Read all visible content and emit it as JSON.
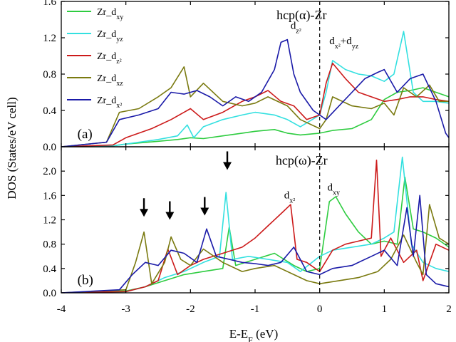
{
  "chart_data": {
    "type": "line",
    "xlabel": "E-E",
    "xlabel_sub": "F",
    "xlabel_unit": " (eV)",
    "ylabel": "DOS (States/eV cell)",
    "xlim": [
      -4,
      2
    ],
    "x_ticks": [
      "-4",
      "-3",
      "-2",
      "-1",
      "0",
      "1",
      "2"
    ],
    "fermi_level": 0,
    "series_meta": [
      {
        "key": "dxy",
        "base": "Zr_d",
        "sub": "xy",
        "color": "#2ecc40"
      },
      {
        "key": "dyz",
        "base": "Zr_d",
        "sub": "yz",
        "color": "#33e0e0"
      },
      {
        "key": "dz2",
        "base": "Zr_d",
        "sub": "z²",
        "color": "#cc1a1a"
      },
      {
        "key": "dxz",
        "base": "Zr_d",
        "sub": "xz",
        "color": "#7a7a10"
      },
      {
        "key": "dx2",
        "base": "Zr_d",
        "sub": "x²",
        "color": "#1a1aa8"
      }
    ],
    "panels": [
      {
        "id": "a",
        "label": "(a)",
        "title": "hcp(α)-Zr",
        "ylim": [
          0,
          1.6
        ],
        "y_ticks": [
          "0.0",
          "0.4",
          "0.8",
          "1.2",
          "1.6"
        ],
        "annotations": [
          {
            "base": "d",
            "sub": "z²",
            "x": -0.45,
            "y": 1.3
          },
          {
            "base": "d",
            "sub": "x²",
            "rest": "+d",
            "sub2": "yz",
            "x": 0.15,
            "y": 1.13
          }
        ],
        "arrows": [],
        "series": [
          {
            "key": "dxy",
            "x": [
              -4,
              -3.2,
              -3,
              -2.5,
              -2.2,
              -2.0,
              -1.8,
              -1.5,
              -1.2,
              -1.0,
              -0.7,
              -0.5,
              -0.3,
              0,
              0.2,
              0.5,
              0.8,
              1.0,
              1.2,
              1.4,
              1.6,
              1.8,
              2.0
            ],
            "y": [
              0,
              0.01,
              0.03,
              0.06,
              0.08,
              0.1,
              0.09,
              0.12,
              0.15,
              0.17,
              0.19,
              0.15,
              0.13,
              0.15,
              0.18,
              0.2,
              0.3,
              0.52,
              0.6,
              0.62,
              0.65,
              0.6,
              0.55
            ]
          },
          {
            "key": "dyz",
            "x": [
              -4,
              -3.2,
              -3,
              -2.5,
              -2.2,
              -2.05,
              -1.95,
              -1.8,
              -1.5,
              -1.2,
              -1.0,
              -0.7,
              -0.5,
              -0.3,
              0,
              0.1,
              0.2,
              0.4,
              0.6,
              0.8,
              1.0,
              1.15,
              1.3,
              1.45,
              1.6,
              1.8,
              2.0
            ],
            "y": [
              0,
              0.01,
              0.03,
              0.08,
              0.12,
              0.24,
              0.1,
              0.22,
              0.3,
              0.35,
              0.38,
              0.35,
              0.3,
              0.22,
              0.35,
              0.6,
              0.95,
              0.85,
              0.8,
              0.78,
              0.72,
              0.8,
              1.27,
              0.6,
              0.5,
              0.5,
              0.48
            ]
          },
          {
            "key": "dz2",
            "x": [
              -4,
              -3.2,
              -3.0,
              -2.6,
              -2.3,
              -2.0,
              -1.8,
              -1.5,
              -1.2,
              -1.0,
              -0.8,
              -0.6,
              -0.4,
              -0.2,
              0,
              0.1,
              0.2,
              0.4,
              0.6,
              0.8,
              1.0,
              1.2,
              1.4,
              1.6,
              1.8,
              2.0
            ],
            "y": [
              0,
              0.02,
              0.1,
              0.2,
              0.3,
              0.42,
              0.3,
              0.38,
              0.5,
              0.55,
              0.62,
              0.5,
              0.45,
              0.3,
              0.35,
              0.7,
              0.92,
              0.75,
              0.6,
              0.55,
              0.5,
              0.52,
              0.55,
              0.55,
              0.52,
              0.5
            ]
          },
          {
            "key": "dxz",
            "x": [
              -4,
              -3.3,
              -3.1,
              -2.8,
              -2.5,
              -2.3,
              -2.1,
              -2.0,
              -1.8,
              -1.5,
              -1.2,
              -1.0,
              -0.8,
              -0.5,
              -0.3,
              0,
              0.1,
              0.2,
              0.5,
              0.8,
              1.0,
              1.15,
              1.3,
              1.5,
              1.7,
              1.85,
              2.0
            ],
            "y": [
              0,
              0.05,
              0.38,
              0.42,
              0.55,
              0.65,
              0.88,
              0.55,
              0.7,
              0.5,
              0.45,
              0.48,
              0.55,
              0.45,
              0.3,
              0.2,
              0.3,
              0.55,
              0.45,
              0.42,
              0.48,
              0.35,
              0.65,
              0.55,
              0.68,
              0.5,
              0.5
            ]
          },
          {
            "key": "dx2",
            "x": [
              -4,
              -3.3,
              -3.1,
              -2.8,
              -2.5,
              -2.3,
              -2.1,
              -1.9,
              -1.7,
              -1.5,
              -1.3,
              -1.1,
              -0.9,
              -0.7,
              -0.6,
              -0.5,
              -0.4,
              -0.3,
              -0.1,
              0,
              0.1,
              0.3,
              0.5,
              0.7,
              0.9,
              1.0,
              1.2,
              1.4,
              1.6,
              1.8,
              1.95,
              2.0
            ],
            "y": [
              0,
              0.05,
              0.3,
              0.35,
              0.42,
              0.6,
              0.58,
              0.62,
              0.55,
              0.45,
              0.55,
              0.5,
              0.6,
              0.85,
              1.15,
              1.18,
              0.8,
              0.6,
              0.4,
              0.35,
              0.3,
              0.45,
              0.6,
              0.75,
              0.82,
              0.85,
              0.6,
              0.75,
              0.8,
              0.5,
              0.15,
              0.1
            ]
          }
        ]
      },
      {
        "id": "b",
        "label": "(b)",
        "title": "hcp(ω)-Zr",
        "ylim": [
          0,
          2.4
        ],
        "y_ticks": [
          "0.0",
          "0.4",
          "0.8",
          "1.2",
          "1.6",
          "2.0"
        ],
        "annotations": [
          {
            "base": "d",
            "sub": "x²",
            "x": -0.55,
            "y": 1.55
          },
          {
            "base": "d",
            "sub": "xy",
            "x": 0.12,
            "y": 1.68
          }
        ],
        "arrows": [
          {
            "x": -2.72,
            "y": 1.25
          },
          {
            "x": -2.32,
            "y": 1.2
          },
          {
            "x": -1.78,
            "y": 1.27
          },
          {
            "x": -1.43,
            "y": 2.02
          }
        ],
        "series": [
          {
            "key": "dxy",
            "x": [
              -4,
              -3.0,
              -2.7,
              -2.4,
              -2.1,
              -1.8,
              -1.5,
              -1.4,
              -1.3,
              -1.0,
              -0.7,
              -0.4,
              -0.2,
              0,
              0.15,
              0.25,
              0.4,
              0.6,
              0.8,
              1.0,
              1.2,
              1.32,
              1.45,
              1.6,
              1.8,
              2.0
            ],
            "y": [
              0,
              0.03,
              0.1,
              0.2,
              0.3,
              0.35,
              0.4,
              1.08,
              0.45,
              0.55,
              0.65,
              0.45,
              0.35,
              0.4,
              1.5,
              1.58,
              1.3,
              1.0,
              0.8,
              0.85,
              0.8,
              1.9,
              1.05,
              1.0,
              0.9,
              0.75
            ]
          },
          {
            "key": "dyz",
            "x": [
              -4,
              -3.0,
              -2.7,
              -2.4,
              -2.1,
              -1.8,
              -1.55,
              -1.45,
              -1.35,
              -1.1,
              -0.8,
              -0.5,
              -0.3,
              0,
              0.2,
              0.5,
              0.8,
              1.0,
              1.15,
              1.28,
              1.42,
              1.6,
              1.8,
              2.0
            ],
            "y": [
              0,
              0.02,
              0.1,
              0.25,
              0.35,
              0.5,
              0.6,
              1.65,
              0.55,
              0.6,
              0.55,
              0.5,
              0.35,
              0.6,
              0.7,
              0.75,
              0.8,
              0.9,
              1.0,
              2.23,
              0.8,
              0.5,
              0.4,
              0.35
            ]
          },
          {
            "key": "dz2",
            "x": [
              -4,
              -3.0,
              -2.7,
              -2.5,
              -2.35,
              -2.2,
              -2.0,
              -1.8,
              -1.5,
              -1.2,
              -1.0,
              -0.8,
              -0.6,
              -0.45,
              -0.35,
              -0.2,
              0,
              0.2,
              0.4,
              0.6,
              0.8,
              0.88,
              0.95,
              1.1,
              1.3,
              1.5,
              1.6,
              1.8,
              2.0
            ],
            "y": [
              0,
              0.02,
              0.1,
              0.2,
              0.72,
              0.3,
              0.45,
              0.55,
              0.65,
              0.75,
              0.9,
              1.1,
              1.3,
              1.45,
              0.55,
              0.5,
              0.35,
              0.7,
              0.8,
              0.85,
              0.9,
              2.18,
              0.6,
              0.9,
              0.5,
              0.7,
              0.2,
              0.8,
              0.7
            ]
          },
          {
            "key": "dxz",
            "x": [
              -4,
              -3.0,
              -2.85,
              -2.72,
              -2.6,
              -2.4,
              -2.3,
              -2.15,
              -2.0,
              -1.8,
              -1.5,
              -1.2,
              -1.0,
              -0.7,
              -0.4,
              -0.2,
              0,
              0.3,
              0.6,
              0.9,
              1.1,
              1.3,
              1.5,
              1.6,
              1.7,
              1.85,
              2.0
            ],
            "y": [
              0,
              0.05,
              0.5,
              1.0,
              0.15,
              0.5,
              0.92,
              0.55,
              0.45,
              0.72,
              0.5,
              0.35,
              0.4,
              0.45,
              0.3,
              0.2,
              0.15,
              0.2,
              0.25,
              0.35,
              0.55,
              0.95,
              0.5,
              0.3,
              1.45,
              0.9,
              0.8
            ]
          },
          {
            "key": "dx2",
            "x": [
              -4,
              -3.1,
              -2.9,
              -2.7,
              -2.5,
              -2.3,
              -2.1,
              -1.9,
              -1.75,
              -1.6,
              -1.4,
              -1.2,
              -1.0,
              -0.8,
              -0.6,
              -0.4,
              -0.2,
              0,
              0.2,
              0.5,
              0.8,
              1.0,
              1.2,
              1.35,
              1.45,
              1.55,
              1.65,
              1.8,
              2.0
            ],
            "y": [
              0,
              0.05,
              0.3,
              0.5,
              0.45,
              0.7,
              0.65,
              0.5,
              1.05,
              0.6,
              0.55,
              0.5,
              0.48,
              0.45,
              0.5,
              0.75,
              0.35,
              0.3,
              0.4,
              0.45,
              0.6,
              0.7,
              0.45,
              1.4,
              0.6,
              1.6,
              0.3,
              0.15,
              0.1
            ]
          }
        ]
      }
    ]
  }
}
